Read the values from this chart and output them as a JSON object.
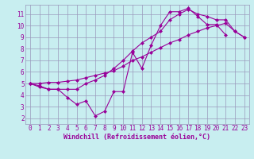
{
  "background_color": "#c8eef0",
  "line_color": "#990099",
  "marker": "D",
  "markersize": 2,
  "linewidth": 0.8,
  "xlim": [
    -0.5,
    23.5
  ],
  "ylim": [
    1.5,
    11.8
  ],
  "yticks": [
    2,
    3,
    4,
    5,
    6,
    7,
    8,
    9,
    10,
    11
  ],
  "xticks": [
    0,
    1,
    2,
    3,
    4,
    5,
    6,
    7,
    8,
    9,
    10,
    11,
    12,
    13,
    14,
    15,
    16,
    17,
    18,
    19,
    20,
    21,
    22,
    23
  ],
  "xlabel": "Windchill (Refroidissement éolien,°C)",
  "grid_color": "#9999bb",
  "tick_color": "#990099",
  "label_color": "#990099",
  "xlabel_fontsize": 6,
  "tick_fontsize": 5.5,
  "series1_x": [
    0,
    1,
    2,
    3,
    4,
    5,
    6,
    7,
    8,
    9,
    10,
    11,
    12,
    13,
    14,
    15,
    16,
    17,
    18,
    19,
    20,
    21
  ],
  "series1_y": [
    5.0,
    4.7,
    4.5,
    4.5,
    3.8,
    3.2,
    3.5,
    2.2,
    2.6,
    4.3,
    4.3,
    7.7,
    6.3,
    8.3,
    10.0,
    11.2,
    11.2,
    11.5,
    10.8,
    10.1,
    10.1,
    9.2
  ],
  "series2_x": [
    0,
    1,
    2,
    3,
    4,
    5,
    6,
    7,
    8,
    9,
    10,
    11,
    12,
    13,
    14,
    15,
    16,
    17,
    18,
    19,
    20,
    21,
    22,
    23
  ],
  "series2_y": [
    5.0,
    4.8,
    4.5,
    4.5,
    4.5,
    4.5,
    5.0,
    5.3,
    5.7,
    6.3,
    7.0,
    7.8,
    8.5,
    9.0,
    9.5,
    10.5,
    11.0,
    11.4,
    11.0,
    10.8,
    10.5,
    10.5,
    9.5,
    9.0
  ],
  "series3_x": [
    0,
    1,
    2,
    3,
    4,
    5,
    6,
    7,
    8,
    9,
    10,
    11,
    12,
    13,
    14,
    15,
    16,
    17,
    18,
    19,
    20,
    21,
    22,
    23
  ],
  "series3_y": [
    5.0,
    5.0,
    5.1,
    5.1,
    5.2,
    5.3,
    5.5,
    5.7,
    5.9,
    6.1,
    6.5,
    7.0,
    7.3,
    7.7,
    8.1,
    8.5,
    8.8,
    9.2,
    9.5,
    9.8,
    10.0,
    10.2,
    9.5,
    9.0
  ]
}
